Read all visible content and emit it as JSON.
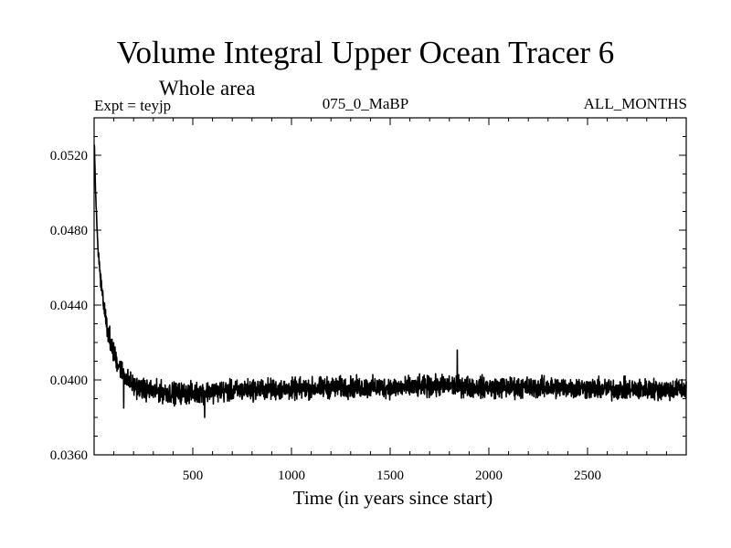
{
  "chart_data": {
    "type": "line",
    "title": "Volume Integral Upper Ocean Tracer 6",
    "subtitle": "Whole area",
    "experiment_label": "Expt = teyjp",
    "run_label": "075_0_MaBP",
    "period_label": "ALL_MONTHS",
    "xlabel": "Time (in years since start)",
    "ylabel": "",
    "xlim": [
      0,
      3000
    ],
    "ylim": [
      0.036,
      0.054
    ],
    "x_ticks": [
      500,
      1000,
      1500,
      2000,
      2500
    ],
    "y_ticks": [
      "0.0360",
      "0.0400",
      "0.0440",
      "0.0480",
      "0.0520"
    ],
    "series": [
      {
        "name": "Tracer 6 volume integral",
        "sampled_points": [
          [
            1,
            0.0525
          ],
          [
            5,
            0.051
          ],
          [
            10,
            0.0493
          ],
          [
            15,
            0.048
          ],
          [
            20,
            0.047
          ],
          [
            30,
            0.0458
          ],
          [
            40,
            0.0448
          ],
          [
            50,
            0.044
          ],
          [
            60,
            0.0433
          ],
          [
            70,
            0.0427
          ],
          [
            80,
            0.0422
          ],
          [
            100,
            0.0414
          ],
          [
            120,
            0.0409
          ],
          [
            150,
            0.0403
          ],
          [
            180,
            0.0399
          ],
          [
            200,
            0.0397
          ],
          [
            250,
            0.0395
          ],
          [
            300,
            0.0394
          ],
          [
            400,
            0.0393
          ],
          [
            500,
            0.0393
          ],
          [
            600,
            0.0394
          ],
          [
            700,
            0.0394
          ],
          [
            800,
            0.0395
          ],
          [
            1000,
            0.0395
          ],
          [
            1200,
            0.0396
          ],
          [
            1400,
            0.0396
          ],
          [
            1600,
            0.0396
          ],
          [
            1800,
            0.0397
          ],
          [
            2000,
            0.0396
          ],
          [
            2200,
            0.0396
          ],
          [
            2400,
            0.0396
          ],
          [
            2600,
            0.0395
          ],
          [
            2800,
            0.0395
          ],
          [
            3000,
            0.0395
          ]
        ],
        "noise_amplitude": 0.0006,
        "notable_extremes": [
          [
            1840,
            0.0416
          ],
          [
            560,
            0.038
          ],
          [
            150,
            0.0385
          ]
        ]
      }
    ]
  }
}
